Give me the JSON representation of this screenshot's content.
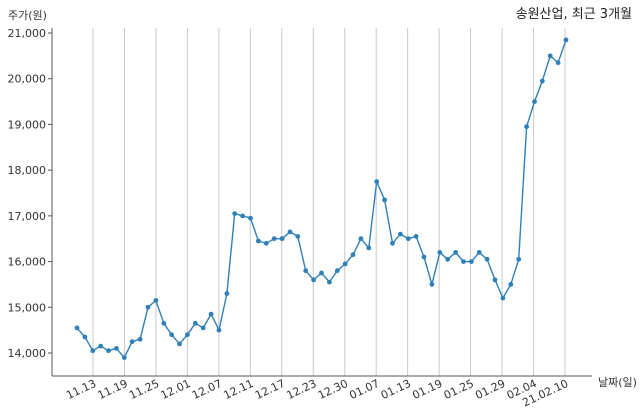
{
  "chart_data": {
    "type": "line",
    "title": "송원산업, 최근 3개월",
    "ylabel": "주가(원)",
    "xlabel": "날짜(일)",
    "ylim": [
      13500,
      21000
    ],
    "yticks": [
      14000,
      15000,
      16000,
      17000,
      18000,
      19000,
      20000,
      21000
    ],
    "ytick_labels": [
      "14,000",
      "15,000",
      "16,000",
      "17,000",
      "18,000",
      "19,000",
      "20,000",
      "21,000"
    ],
    "xtick_labels": [
      "11.13",
      "11.19",
      "11.25",
      "12.01",
      "12.07",
      "12.11",
      "12.17",
      "12.23",
      "12.30",
      "01.07",
      "01.13",
      "01.19",
      "01.25",
      "01.29",
      "02.04",
      "21.02.10"
    ],
    "grid": "vertical",
    "colors": {
      "line": "#2f7fb8",
      "grid": "#c8c8c8",
      "axis": "#555555"
    },
    "series": [
      {
        "values": [
          14550,
          14350,
          14050,
          14150,
          14050,
          14100,
          13900,
          14250,
          14300,
          15000,
          15150,
          14650,
          14400,
          14200,
          14400,
          14650,
          14550,
          14850,
          14500,
          15300,
          17050,
          17000,
          16950,
          16450,
          16400,
          16500,
          16500,
          16650,
          16550,
          15800,
          15600,
          15750,
          15550,
          15800,
          15950,
          16150,
          16500,
          16300,
          17750,
          17350,
          16400,
          16600,
          16500,
          16550,
          16100,
          15500,
          16200,
          16050,
          16200,
          16000,
          16000,
          16200,
          16050,
          15600,
          15200,
          15500,
          16050,
          18950,
          19500,
          19950,
          20500,
          20350,
          20850
        ]
      }
    ]
  }
}
